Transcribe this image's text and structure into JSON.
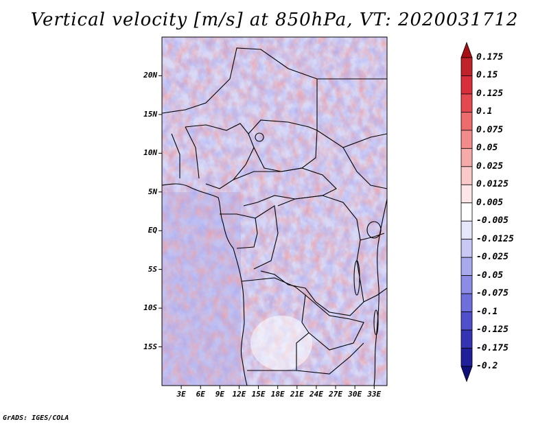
{
  "title": "Vertical velocity [m/s] at 850hPa, VT: 2020031712",
  "map": {
    "lat_labels": [
      "20N",
      "15N",
      "10N",
      "5N",
      "EQ",
      "5S",
      "10S",
      "15S"
    ],
    "lat_values": [
      20,
      15,
      10,
      5,
      0,
      -5,
      -10,
      -15
    ],
    "lon_labels": [
      "3E",
      "6E",
      "9E",
      "12E",
      "15E",
      "18E",
      "21E",
      "24E",
      "27E",
      "30E",
      "33E"
    ],
    "lon_values": [
      3,
      6,
      9,
      12,
      15,
      18,
      21,
      24,
      27,
      30,
      33
    ],
    "lat_range": [
      -20,
      25
    ],
    "lon_range": [
      0,
      35
    ]
  },
  "colorbar": {
    "labels": [
      "0.175",
      "0.15",
      "0.125",
      "0.1",
      "0.075",
      "0.05",
      "0.025",
      "0.0125",
      "0.005",
      "-0.005",
      "-0.0125",
      "-0.025",
      "-0.05",
      "-0.075",
      "-0.1",
      "-0.125",
      "-0.175",
      "-0.2"
    ],
    "colors": [
      "#a50f15",
      "#c0222a",
      "#d73038",
      "#e34a4f",
      "#ec6b6b",
      "#f28b8b",
      "#f6aaaa",
      "#fac9c9",
      "#fde6e6",
      "#ffffff",
      "#e6e6fb",
      "#c8c8f5",
      "#a9a9ee",
      "#8c8ce6",
      "#6e6edd",
      "#5050cc",
      "#3434b3",
      "#20209a",
      "#0f0f7a"
    ]
  },
  "credit": "GrADS: IGES/COLA"
}
